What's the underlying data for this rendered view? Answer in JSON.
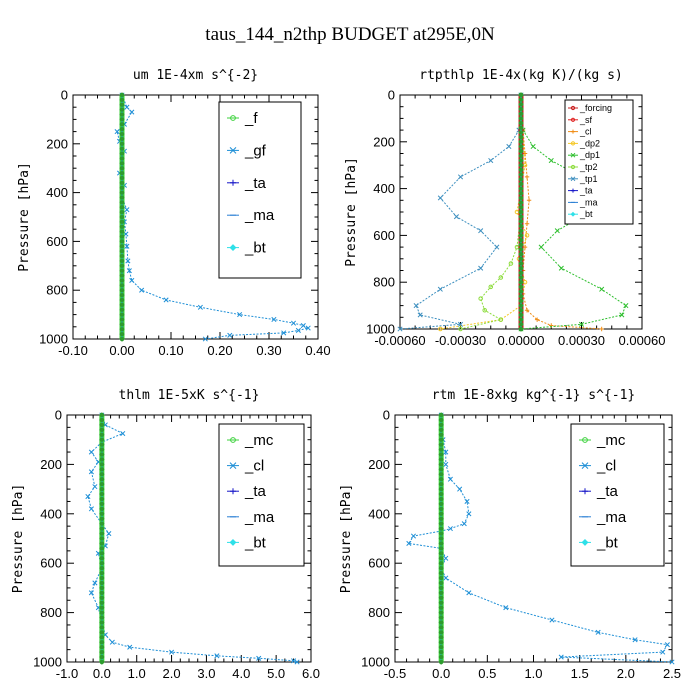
{
  "figure_title": "taus_144_n2thp  BUDGET at295E,0N",
  "chart_data": [
    {
      "type": "line",
      "title": "um  1E-4xm s^{-2}",
      "ylabel": "Pressure [hPa]",
      "xlim": [
        -0.1,
        0.4
      ],
      "ylim": [
        1000,
        0
      ],
      "xticks": [
        "-0.10",
        "0.00",
        "0.10",
        "0.20",
        "0.30",
        "0.40"
      ],
      "xtick_values": [
        -0.1,
        0.0,
        0.1,
        0.2,
        0.3,
        0.4
      ],
      "yticks": [
        "0",
        "200",
        "400",
        "600",
        "800",
        "1000"
      ],
      "ytick_values": [
        0,
        200,
        400,
        600,
        800,
        1000
      ],
      "legend_placement": "top-right",
      "series": [
        {
          "name": "_f",
          "color": "#3cd23c",
          "marker": "circle",
          "x": [
            0.0,
            0.0,
            0.0,
            0.0,
            0.0
          ],
          "y": [
            0,
            250,
            500,
            750,
            1000
          ]
        },
        {
          "name": "_gf",
          "color": "#1e8fd6",
          "marker": "x",
          "x": [
            0.0,
            0.01,
            0.02,
            0.005,
            -0.01,
            -0.005,
            0.005,
            0.0,
            -0.005,
            0.005,
            0.0,
            0.01,
            0.005,
            0.008,
            0.01,
            0.012,
            0.015,
            0.02,
            0.04,
            0.09,
            0.16,
            0.24,
            0.31,
            0.35,
            0.37,
            0.38,
            0.36,
            0.33,
            0.22,
            0.17
          ],
          "y": [
            0,
            50,
            70,
            120,
            150,
            190,
            230,
            280,
            320,
            370,
            420,
            470,
            520,
            570,
            620,
            680,
            720,
            760,
            800,
            840,
            870,
            900,
            920,
            935,
            945,
            955,
            965,
            975,
            985,
            1000
          ]
        },
        {
          "name": "_ta",
          "color": "#1616c8",
          "marker": "plus",
          "x": [
            0.0,
            0.0
          ],
          "y": [
            0,
            1000
          ]
        },
        {
          "name": "_ma",
          "color": "#2a7fd4",
          "marker": "dash",
          "x": [
            0.0,
            0.0
          ],
          "y": [
            0,
            1000
          ]
        },
        {
          "name": "_bt",
          "color": "#2ee0e8",
          "marker": "diamond",
          "x": [
            0.0,
            0.0
          ],
          "y": [
            0,
            1000
          ]
        }
      ]
    },
    {
      "type": "line",
      "title": "rtpthlp  1E-4x(kg K)/(kg s)",
      "ylabel": "Pressure [hPa]",
      "xlim": [
        -0.0006,
        0.0006
      ],
      "ylim": [
        1000,
        0
      ],
      "xticks": [
        "-0.00060",
        "-0.00030",
        "0.00000",
        "0.00030",
        "0.00060"
      ],
      "xtick_values": [
        -0.0006,
        -0.0003,
        0.0,
        0.0003,
        0.0006
      ],
      "yticks": [
        "0",
        "200",
        "400",
        "600",
        "800",
        "1000"
      ],
      "ytick_values": [
        0,
        200,
        400,
        600,
        800,
        1000
      ],
      "legend_placement": "top-right",
      "series": [
        {
          "name": "_forcing",
          "color": "#c81e1e",
          "marker": "circle",
          "x": [
            0.0,
            0.0,
            0.0,
            0.0,
            0.0
          ],
          "y": [
            0,
            250,
            500,
            750,
            1000
          ]
        },
        {
          "name": "_sf",
          "color": "#e02020",
          "marker": "circle",
          "x": [
            0.0,
            0.0
          ],
          "y": [
            0,
            1000
          ]
        },
        {
          "name": "_cl",
          "color": "#f08c14",
          "marker": "plus",
          "x": [
            0.0,
            1e-05,
            2e-05,
            3e-05,
            4e-05,
            3e-05,
            2e-05,
            1e-05,
            1e-05,
            3e-05,
            8e-05,
            0.00015,
            0.0004
          ],
          "y": [
            0,
            150,
            250,
            350,
            450,
            550,
            650,
            750,
            850,
            920,
            960,
            985,
            1000
          ]
        },
        {
          "name": "_dp2",
          "color": "#f5c828",
          "marker": "circle",
          "x": [
            0.0,
            2e-05,
            -2e-05,
            3e-05,
            -1e-05,
            2e-05,
            0.0,
            -0.0001,
            -0.0004
          ],
          "y": [
            0,
            300,
            500,
            600,
            700,
            800,
            900,
            960,
            1000
          ]
        },
        {
          "name": "_dp1",
          "color": "#2fbf2f",
          "marker": "x",
          "x": [
            0.0,
            1e-05,
            6e-05,
            0.00015,
            0.0003,
            0.00038,
            0.0003,
            0.00018,
            0.0001,
            0.0002,
            0.0004,
            0.00052,
            0.0005,
            0.0003,
            0.0
          ],
          "y": [
            0,
            150,
            220,
            280,
            350,
            440,
            520,
            580,
            650,
            740,
            830,
            900,
            940,
            980,
            1000
          ]
        },
        {
          "name": "_tp2",
          "color": "#8cdc3c",
          "marker": "circle",
          "x": [
            0.0,
            0.0,
            -2e-05,
            -5e-05,
            -0.0001,
            -0.00015,
            -0.0002,
            -0.00018,
            -0.0001,
            -0.0003
          ],
          "y": [
            0,
            500,
            650,
            720,
            780,
            820,
            870,
            920,
            960,
            1000
          ]
        },
        {
          "name": "_tp1",
          "color": "#3d8fbf",
          "marker": "x",
          "x": [
            0.0,
            -1e-05,
            -6e-05,
            -0.00015,
            -0.0003,
            -0.0004,
            -0.00032,
            -0.0002,
            -0.00012,
            -0.0002,
            -0.0004,
            -0.00052,
            -0.0005,
            -0.0003,
            -0.0006
          ],
          "y": [
            0,
            150,
            220,
            280,
            350,
            440,
            520,
            580,
            650,
            740,
            830,
            900,
            940,
            980,
            1000
          ]
        },
        {
          "name": "_ta",
          "color": "#1616c8",
          "marker": "plus",
          "x": [
            0.0,
            0.0
          ],
          "y": [
            0,
            1000
          ]
        },
        {
          "name": "_ma",
          "color": "#2a7fd4",
          "marker": "dash",
          "x": [
            0.0,
            0.0
          ],
          "y": [
            0,
            1000
          ]
        },
        {
          "name": "_bt",
          "color": "#2ee0e8",
          "marker": "diamond",
          "x": [
            0.0,
            0.0
          ],
          "y": [
            0,
            1000
          ]
        }
      ]
    },
    {
      "type": "line",
      "title": "thlm  1E-5xK s^{-1}",
      "ylabel": "Pressure [hPa]",
      "xlim": [
        -1.0,
        6.0
      ],
      "ylim": [
        1000,
        0
      ],
      "xticks": [
        "-1.0",
        "0.0",
        "1.0",
        "2.0",
        "3.0",
        "4.0",
        "5.0",
        "6.0"
      ],
      "xtick_values": [
        -1.0,
        0.0,
        1.0,
        2.0,
        3.0,
        4.0,
        5.0,
        6.0
      ],
      "yticks": [
        "0",
        "200",
        "400",
        "600",
        "800",
        "1000"
      ],
      "ytick_values": [
        0,
        200,
        400,
        600,
        800,
        1000
      ],
      "legend_placement": "top-right",
      "series": [
        {
          "name": "_mc",
          "color": "#3cd23c",
          "marker": "circle",
          "x": [
            0.0,
            0.0,
            0.0,
            0.0,
            0.0
          ],
          "y": [
            0,
            250,
            500,
            750,
            1000
          ]
        },
        {
          "name": "_cl",
          "color": "#1e8fd6",
          "marker": "x",
          "x": [
            0.0,
            0.1,
            0.6,
            0.0,
            -0.3,
            -0.1,
            -0.3,
            -0.2,
            -0.4,
            -0.3,
            0.0,
            0.2,
            0.1,
            -0.1,
            0.0,
            -0.2,
            -0.3,
            -0.1,
            0.0,
            0.1,
            0.3,
            0.8,
            2.0,
            3.3,
            4.5,
            5.5,
            5.6
          ],
          "y": [
            0,
            40,
            75,
            110,
            150,
            190,
            230,
            290,
            330,
            380,
            440,
            480,
            530,
            560,
            620,
            680,
            720,
            780,
            840,
            890,
            920,
            940,
            960,
            975,
            985,
            995,
            1000
          ]
        },
        {
          "name": "_ta",
          "color": "#1616c8",
          "marker": "plus",
          "x": [
            0.0,
            0.0
          ],
          "y": [
            0,
            1000
          ]
        },
        {
          "name": "_ma",
          "color": "#2a7fd4",
          "marker": "dash",
          "x": [
            0.0,
            0.0
          ],
          "y": [
            0,
            1000
          ]
        },
        {
          "name": "_bt",
          "color": "#2ee0e8",
          "marker": "diamond",
          "x": [
            0.0,
            0.0
          ],
          "y": [
            0,
            1000
          ]
        }
      ]
    },
    {
      "type": "line",
      "title": "rtm  1E-8xkg kg^{-1} s^{-1}",
      "ylabel": "Pressure [hPa]",
      "xlim": [
        -0.5,
        2.5
      ],
      "ylim": [
        1000,
        0
      ],
      "xticks": [
        "-0.5",
        "0.0",
        "0.5",
        "1.0",
        "1.5",
        "2.0",
        "2.5"
      ],
      "xtick_values": [
        -0.5,
        0.0,
        0.5,
        1.0,
        1.5,
        2.0,
        2.5
      ],
      "yticks": [
        "0",
        "200",
        "400",
        "600",
        "800",
        "1000"
      ],
      "ytick_values": [
        0,
        200,
        400,
        600,
        800,
        1000
      ],
      "legend_placement": "top-right",
      "series": [
        {
          "name": "_mc",
          "color": "#3cd23c",
          "marker": "circle",
          "x": [
            0.0,
            0.0,
            0.0,
            0.0,
            0.0
          ],
          "y": [
            0,
            250,
            500,
            750,
            1000
          ]
        },
        {
          "name": "_cl",
          "color": "#1e8fd6",
          "marker": "x",
          "x": [
            0.0,
            0.02,
            0.05,
            0.05,
            0.1,
            0.2,
            0.28,
            0.3,
            0.25,
            0.1,
            0.0,
            -0.3,
            -0.35,
            0.0,
            0.05,
            0.0,
            0.05,
            0.3,
            0.7,
            1.2,
            1.7,
            2.1,
            2.45,
            2.4,
            1.3,
            2.5
          ],
          "y": [
            0,
            100,
            150,
            200,
            260,
            300,
            350,
            400,
            440,
            460,
            470,
            490,
            520,
            540,
            580,
            620,
            660,
            720,
            780,
            830,
            880,
            910,
            930,
            960,
            980,
            1000
          ]
        },
        {
          "name": "_ta",
          "color": "#1616c8",
          "marker": "plus",
          "x": [
            0.0,
            0.0
          ],
          "y": [
            0,
            1000
          ]
        },
        {
          "name": "_ma",
          "color": "#2a7fd4",
          "marker": "dash",
          "x": [
            0.0,
            0.0
          ],
          "y": [
            0,
            1000
          ]
        },
        {
          "name": "_bt",
          "color": "#2ee0e8",
          "marker": "diamond",
          "x": [
            0.0,
            0.0
          ],
          "y": [
            0,
            1000
          ]
        }
      ]
    }
  ]
}
